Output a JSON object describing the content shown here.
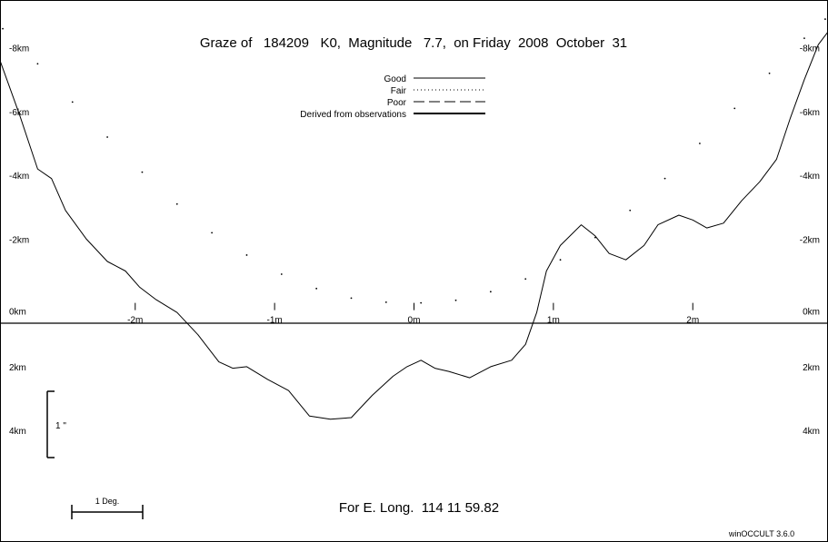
{
  "title": "Graze of   184209   K0,  Magnitude   7.7,  on Friday  2008  October  31",
  "footer": "For E. Long.  114 11 59.82",
  "credit": "winOCCULT 3.6.0",
  "legend": [
    {
      "label": "Good",
      "style": "solid"
    },
    {
      "label": "Fair",
      "style": "dotted"
    },
    {
      "label": "Poor",
      "style": "dashed"
    },
    {
      "label": "Derived from observations",
      "style": "thick"
    }
  ],
  "scales": {
    "vertical_label": "1 \"",
    "horizontal_label": "1 Deg."
  },
  "chart_data": {
    "type": "line",
    "title": "Graze of   184209   K0,  Magnitude   7.7,  on Friday  2008  October  31",
    "x_unit": "m",
    "y_unit": "km",
    "xlim": [
      -2.97,
      2.97
    ],
    "ylim": [
      -7.5,
      9.5
    ],
    "x_ticks": [
      {
        "v": -2,
        "label": "-2m"
      },
      {
        "v": -1,
        "label": "-1m"
      },
      {
        "v": 0,
        "label": "0m"
      },
      {
        "v": 1,
        "label": "1m"
      },
      {
        "v": 2,
        "label": "2m"
      }
    ],
    "y_ticks": [
      {
        "v": 8,
        "label": "-8km"
      },
      {
        "v": 6,
        "label": "-6km"
      },
      {
        "v": 4,
        "label": "-4km"
      },
      {
        "v": 2,
        "label": "-2km"
      },
      {
        "v": 0,
        "label": "0km"
      },
      {
        "v": -2,
        "label": "2km"
      },
      {
        "v": -4,
        "label": "4km"
      }
    ],
    "series": [
      {
        "name": "Good",
        "style": "solid",
        "points": [
          [
            -2.97,
            7.6
          ],
          [
            -2.83,
            5.9
          ],
          [
            -2.7,
            4.2
          ],
          [
            -2.6,
            3.9
          ],
          [
            -2.5,
            2.9
          ],
          [
            -2.35,
            2.0
          ],
          [
            -2.2,
            1.3
          ],
          [
            -2.07,
            1.0
          ],
          [
            -1.97,
            0.5
          ],
          [
            -1.85,
            0.1
          ],
          [
            -1.7,
            -0.3
          ],
          [
            -1.55,
            -1.0
          ],
          [
            -1.4,
            -1.85
          ],
          [
            -1.3,
            -2.05
          ],
          [
            -1.2,
            -2.0
          ],
          [
            -1.05,
            -2.4
          ],
          [
            -0.9,
            -2.75
          ],
          [
            -0.75,
            -3.55
          ],
          [
            -0.6,
            -3.65
          ],
          [
            -0.45,
            -3.6
          ],
          [
            -0.3,
            -2.9
          ],
          [
            -0.15,
            -2.3
          ],
          [
            -0.05,
            -2.0
          ],
          [
            0.05,
            -1.8
          ],
          [
            0.15,
            -2.05
          ],
          [
            0.25,
            -2.15
          ],
          [
            0.4,
            -2.35
          ],
          [
            0.55,
            -2.0
          ],
          [
            0.7,
            -1.8
          ],
          [
            0.8,
            -1.3
          ],
          [
            0.88,
            -0.3
          ],
          [
            0.95,
            1.0
          ],
          [
            1.05,
            1.8
          ],
          [
            1.2,
            2.45
          ],
          [
            1.3,
            2.1
          ],
          [
            1.4,
            1.55
          ],
          [
            1.52,
            1.35
          ],
          [
            1.65,
            1.8
          ],
          [
            1.75,
            2.45
          ],
          [
            1.9,
            2.75
          ],
          [
            2.0,
            2.6
          ],
          [
            2.1,
            2.35
          ],
          [
            2.22,
            2.5
          ],
          [
            2.35,
            3.2
          ],
          [
            2.48,
            3.8
          ],
          [
            2.6,
            4.5
          ],
          [
            2.7,
            5.8
          ],
          [
            2.8,
            7.0
          ],
          [
            2.9,
            8.1
          ],
          [
            2.97,
            8.5
          ]
        ]
      },
      {
        "name": "Fair",
        "style": "dotted",
        "points": [
          [
            -2.95,
            8.6
          ],
          [
            -2.7,
            7.5
          ],
          [
            -2.45,
            6.3
          ],
          [
            -2.2,
            5.2
          ],
          [
            -1.95,
            4.1
          ],
          [
            -1.7,
            3.1
          ],
          [
            -1.45,
            2.2
          ],
          [
            -1.2,
            1.5
          ],
          [
            -0.95,
            0.9
          ],
          [
            -0.7,
            0.45
          ],
          [
            -0.45,
            0.15
          ],
          [
            -0.2,
            0.02
          ],
          [
            0.05,
            0.0
          ],
          [
            0.3,
            0.08
          ],
          [
            0.55,
            0.35
          ],
          [
            0.8,
            0.75
          ],
          [
            1.05,
            1.35
          ],
          [
            1.3,
            2.05
          ],
          [
            1.55,
            2.9
          ],
          [
            1.8,
            3.9
          ],
          [
            2.05,
            5.0
          ],
          [
            2.3,
            6.1
          ],
          [
            2.55,
            7.2
          ],
          [
            2.8,
            8.3
          ],
          [
            2.95,
            8.9
          ]
        ]
      }
    ]
  }
}
